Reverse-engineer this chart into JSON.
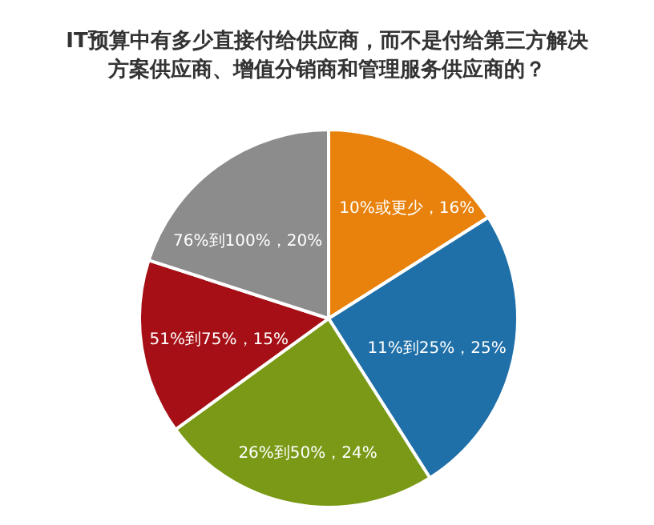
{
  "chart_data": {
    "type": "pie",
    "title": "IT预算中有多少直接付给供应商，而不是付给第三方解决方案供应商、增值分销商和管理服务供应商的？",
    "categories": [
      "10%或更少",
      "11%到25%",
      "26%到50%",
      "51%到75%",
      "76%到100%"
    ],
    "values": [
      16,
      25,
      24,
      15,
      20
    ],
    "colors": [
      "#e8820c",
      "#1f6fa8",
      "#7a9a17",
      "#a50f15",
      "#8c8c8c"
    ],
    "value_labels": [
      "16%",
      "25%",
      "24%",
      "15%",
      "20%"
    ],
    "legend": false
  }
}
